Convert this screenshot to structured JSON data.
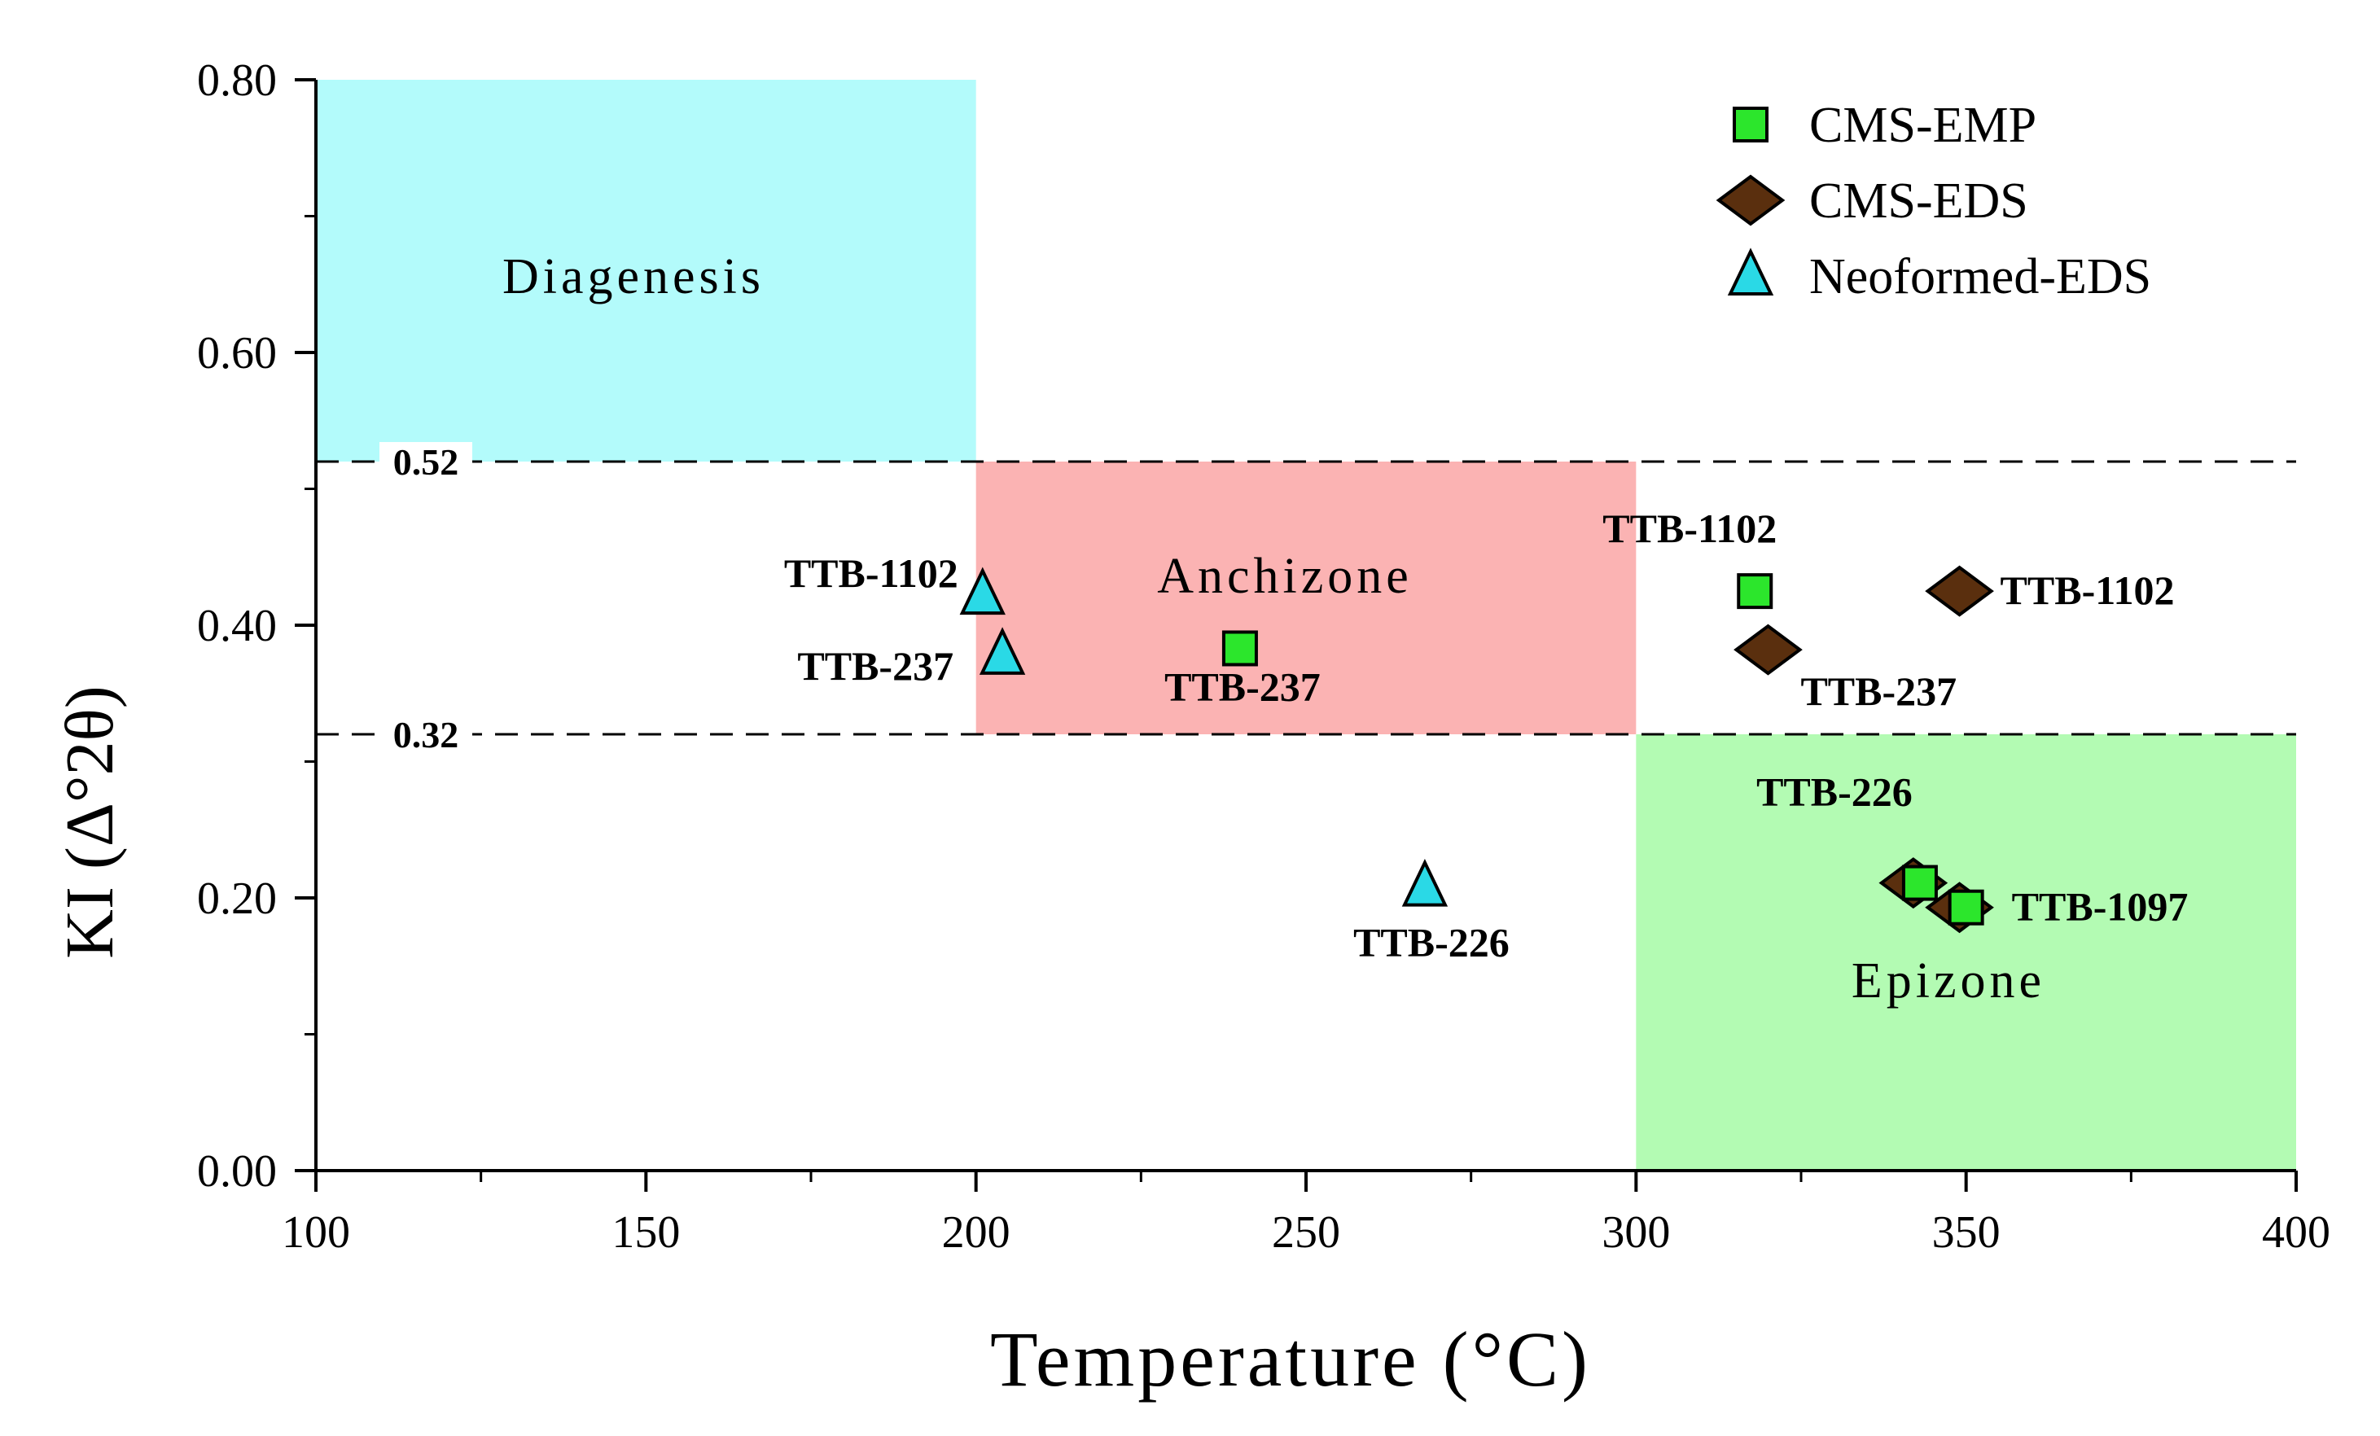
{
  "chart_data": {
    "type": "scatter",
    "xlabel": "Temperature (°C)",
    "ylabel": "KI (Δ°2θ)",
    "xlim": [
      100,
      400
    ],
    "ylim": [
      0,
      0.8
    ],
    "xticks": [
      "100",
      "150",
      "200",
      "250",
      "300",
      "350",
      "400"
    ],
    "yticks": [
      "0.00",
      "0.20",
      "0.40",
      "0.60",
      "0.80"
    ],
    "grid": false,
    "legend_position": "top-right",
    "zones": [
      {
        "name": "Diagenesis",
        "x": [
          100,
          200
        ],
        "y": [
          0.52,
          0.8
        ],
        "color": "#b3fbfb"
      },
      {
        "name": "Anchizone",
        "x": [
          200,
          300
        ],
        "y": [
          0.32,
          0.52
        ],
        "color": "#fbb3b3"
      },
      {
        "name": "Epizone",
        "x": [
          300,
          400
        ],
        "y": [
          0,
          0.32
        ],
        "color": "#b3fbb3"
      }
    ],
    "reference_lines": [
      {
        "y": 0.52,
        "label": "0.52"
      },
      {
        "y": 0.32,
        "label": "0.32"
      }
    ],
    "series": [
      {
        "name": "CMS-EMP",
        "marker": "square",
        "color": "#2ce62c",
        "points": [
          {
            "x": 318,
            "y": 0.425,
            "label": "TTB-1102"
          },
          {
            "x": 240,
            "y": 0.383,
            "label": "TTB-237"
          },
          {
            "x": 343,
            "y": 0.211,
            "label": "TTB-226"
          },
          {
            "x": 350,
            "y": 0.193,
            "label": "TTB-1097"
          }
        ]
      },
      {
        "name": "CMS-EDS",
        "marker": "diamond",
        "color": "#5a2f0e",
        "points": [
          {
            "x": 349,
            "y": 0.425,
            "label": "TTB-1102"
          },
          {
            "x": 320,
            "y": 0.382,
            "label": "TTB-237"
          },
          {
            "x": 342,
            "y": 0.211,
            "label": ""
          },
          {
            "x": 349,
            "y": 0.193,
            "label": ""
          }
        ]
      },
      {
        "name": "Neoformed-EDS",
        "marker": "triangle",
        "color": "#2ad9e6",
        "points": [
          {
            "x": 201,
            "y": 0.422,
            "label": "TTB-1102"
          },
          {
            "x": 204,
            "y": 0.378,
            "label": "TTB-237"
          },
          {
            "x": 268,
            "y": 0.208,
            "label": "TTB-226"
          }
        ]
      }
    ]
  }
}
